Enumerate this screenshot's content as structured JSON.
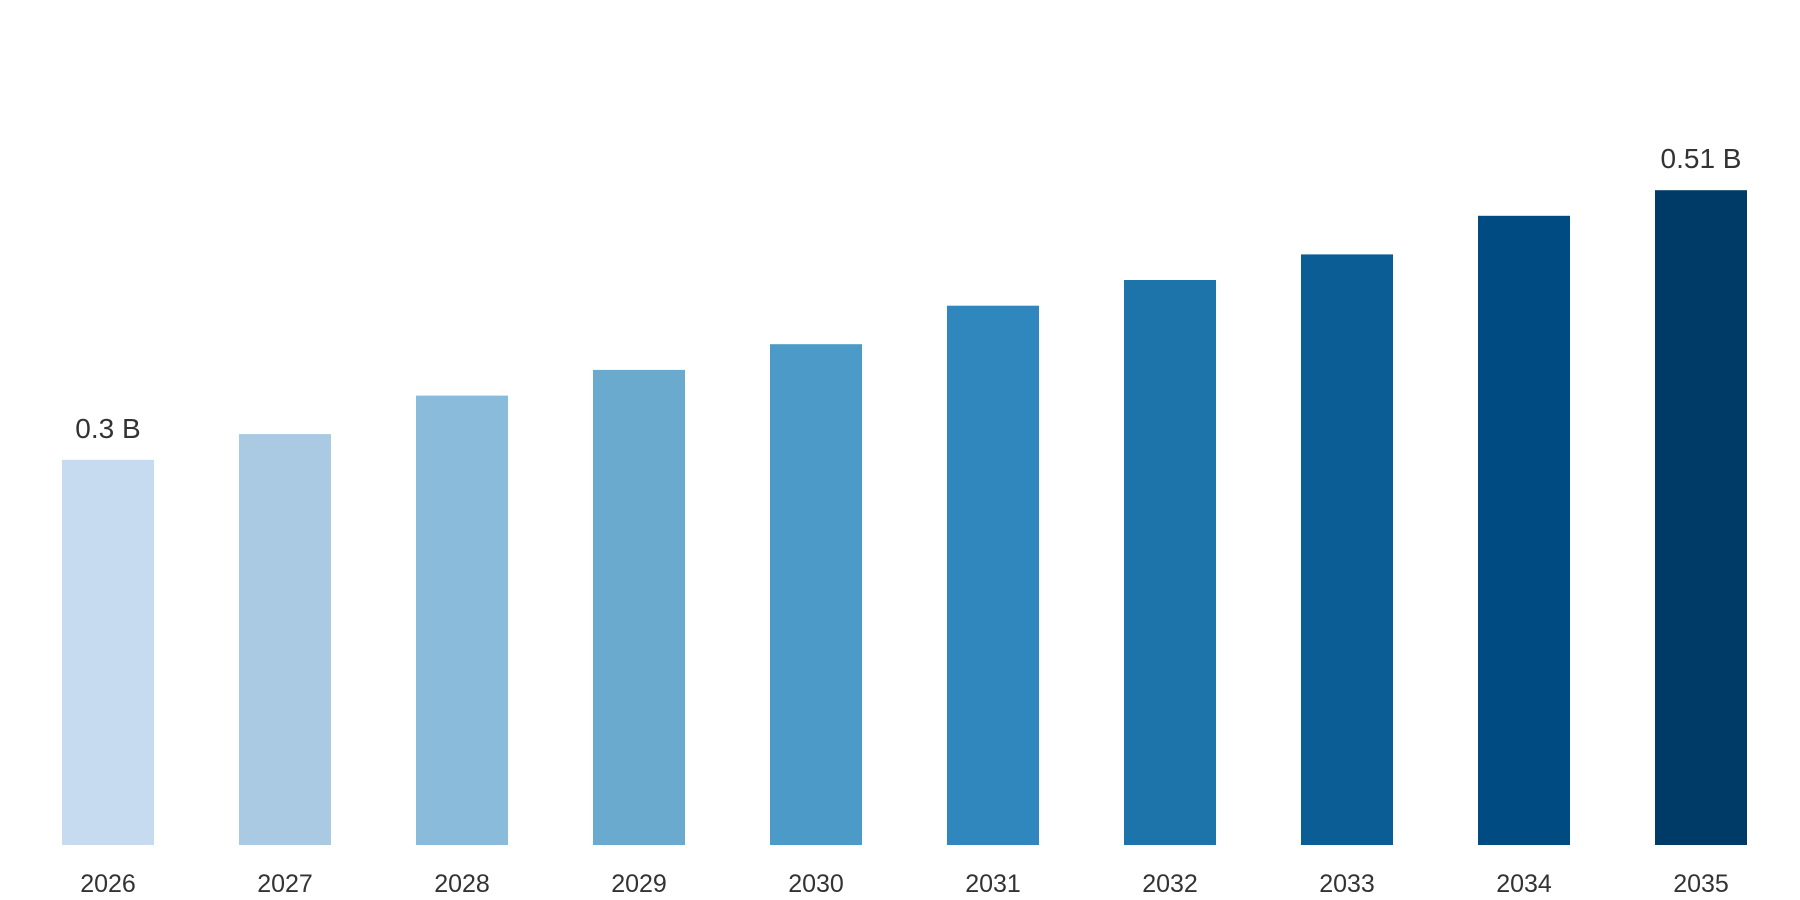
{
  "chart_data": {
    "type": "bar",
    "categories": [
      "2026",
      "2027",
      "2028",
      "2029",
      "2030",
      "2031",
      "2032",
      "2033",
      "2034",
      "2035"
    ],
    "values": [
      0.3,
      0.32,
      0.35,
      0.37,
      0.39,
      0.42,
      0.44,
      0.46,
      0.49,
      0.51
    ],
    "value_unit": "B",
    "data_labels": [
      {
        "index": 0,
        "text": "0.3 B"
      },
      {
        "index": 9,
        "text": "0.51 B"
      }
    ],
    "colors": [
      "#c6dbef",
      "#a9cae2",
      "#8abbda",
      "#6aaacf",
      "#4b9ac7",
      "#2f87bd",
      "#1c74aa",
      "#0b5e95",
      "#004c82",
      "#003a66"
    ],
    "ylim": [
      0,
      0.6
    ],
    "grid": false,
    "legend": "none",
    "title": "",
    "xlabel": "",
    "ylabel": ""
  }
}
